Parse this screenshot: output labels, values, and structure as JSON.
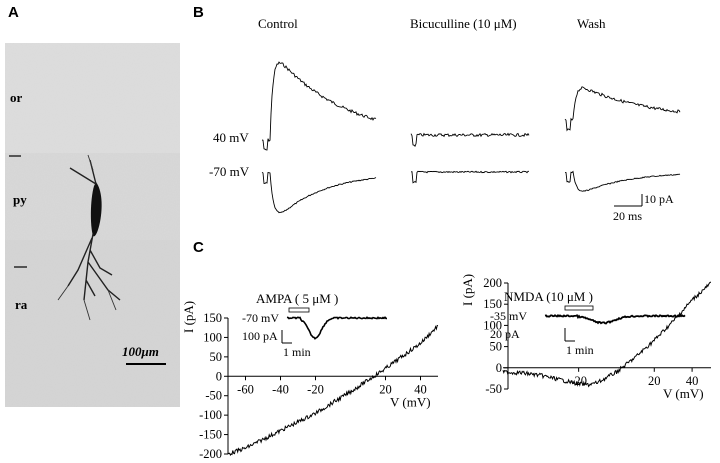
{
  "panels": {
    "a": "A",
    "b": "B",
    "c": "C"
  },
  "micrograph": {
    "layers": {
      "oriens": "or",
      "pyramidale": "py",
      "radiatum": "ra"
    },
    "scale_bar": "100μm"
  },
  "traces": {
    "conditions": {
      "control": "Control",
      "bicuculline": "Bicuculline (10 μM)",
      "wash": "Wash"
    },
    "holding": {
      "depolarized": "40 mV",
      "hyperpolarized": "-70 mV"
    },
    "scale": {
      "current": "10 pA",
      "time": "20 ms"
    }
  },
  "chart_data": [
    {
      "type": "line",
      "title": "",
      "xlabel": "V (mV)",
      "ylabel": "I (pA)",
      "xlim": [
        -70,
        50
      ],
      "ylim": [
        -200,
        150
      ],
      "xticks": [
        -60,
        -40,
        -20,
        20,
        40
      ],
      "yticks": [
        -200,
        -150,
        -100,
        -50,
        0,
        50,
        100,
        150
      ],
      "x": [
        -70,
        -60,
        -40,
        -20,
        0,
        10,
        20,
        40,
        50
      ],
      "y": [
        -200,
        -185,
        -140,
        -95,
        -40,
        -10,
        20,
        85,
        130
      ],
      "inset": {
        "agent": "AMPA ( 5 μM )",
        "holding": "-70 mV",
        "current_scale": "100 pA",
        "time_scale": "1 min"
      }
    },
    {
      "type": "line",
      "title": "",
      "xlabel": "V (mV)",
      "ylabel": "I (pA)",
      "xlim": [
        -60,
        50
      ],
      "ylim": [
        -50,
        200
      ],
      "xticks": [
        -20,
        20,
        40
      ],
      "yticks": [
        -50,
        0,
        50,
        100,
        150,
        200
      ],
      "x": [
        -60,
        -50,
        -40,
        -30,
        -20,
        -15,
        -10,
        0,
        10,
        20,
        30,
        40,
        50
      ],
      "y": [
        -10,
        -12,
        -18,
        -28,
        -38,
        -40,
        -35,
        -10,
        25,
        65,
        110,
        160,
        200
      ],
      "inset": {
        "agent": "NMDA (10 μM )",
        "holding": "-35 mV",
        "current_scale": "20 pA",
        "time_scale": "1 min"
      }
    }
  ]
}
